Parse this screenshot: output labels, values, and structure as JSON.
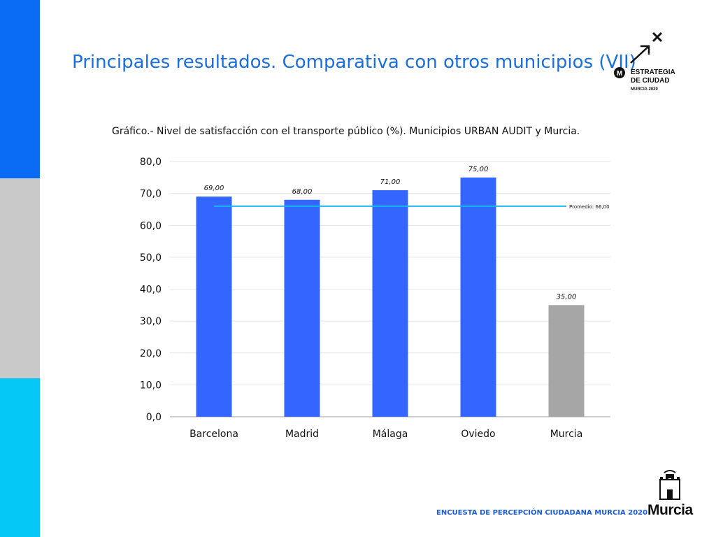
{
  "slide": {
    "title": "Principales resultados. Comparativa con otros municipios (VII)",
    "footer": "ENCUESTA DE PERCEPCIÓN CIUDADANA MURCIA 2020"
  },
  "logo": {
    "line1": "ESTRATEGIA",
    "line2": "DE CIUDAD",
    "line3": "MURCIA 2020",
    "badge": "M"
  },
  "municipality": {
    "name": "Murcia"
  },
  "colors": {
    "bar_main": "#3366ff",
    "bar_highlight": "#a6a6a6",
    "average_line": "#1ab6f0",
    "band_blue": "#0a6cf5",
    "band_gray": "#c9c9c9",
    "band_cyan": "#06c8f6"
  },
  "chart_data": {
    "type": "bar",
    "title": "Gráfico.-  Nivel de satisfacción con el transporte público (%). Municipios URBAN AUDIT y Murcia.",
    "categories": [
      "Barcelona",
      "Madrid",
      "Málaga",
      "Oviedo",
      "Murcia"
    ],
    "values": [
      69,
      68,
      71,
      75,
      35
    ],
    "value_labels": [
      "69,00",
      "68,00",
      "71,00",
      "75,00",
      "35,00"
    ],
    "highlight_category": "Murcia",
    "ylim": [
      0,
      80
    ],
    "y_ticks": [
      0,
      10,
      20,
      30,
      40,
      50,
      60,
      70,
      80
    ],
    "y_tick_labels": [
      "0,0",
      "10,0",
      "20,0",
      "30,0",
      "40,0",
      "50,0",
      "60,0",
      "70,0",
      "80,0"
    ],
    "grid": true,
    "reference_line": {
      "value": 66,
      "label": "Promedio: 66,00"
    },
    "xlabel": "",
    "ylabel": ""
  }
}
